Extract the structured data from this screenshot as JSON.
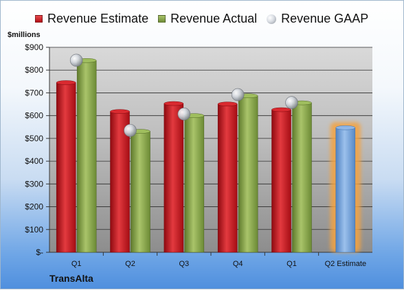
{
  "colors": {
    "estimate": "#c8161d",
    "actual": "#8aa84a",
    "gaap": "#b8bcc4",
    "q2_estimate_bar": "#6e9fd6",
    "highlight_glow": "#f4a340"
  },
  "legend": {
    "estimate_label": "Revenue Estimate",
    "actual_label": "Revenue Actual",
    "gaap_label": "Revenue GAAP"
  },
  "y_unit": "$millions",
  "company": "TransAlta",
  "chart_data": {
    "type": "bar",
    "categories": [
      "Q1",
      "Q2",
      "Q3",
      "Q4",
      "Q1",
      "Q2 Estimate"
    ],
    "series": [
      {
        "name": "Revenue Estimate",
        "values": [
          745,
          618,
          653,
          651,
          626,
          null
        ]
      },
      {
        "name": "Revenue Actual",
        "values": [
          842,
          531,
          600,
          687,
          656,
          547
        ]
      },
      {
        "name": "Revenue GAAP",
        "type": "scatter",
        "values": [
          843,
          535,
          607,
          692,
          657,
          null
        ]
      }
    ],
    "highlighted_category": "Q2 Estimate",
    "ylim": [
      0,
      900
    ],
    "y_ticks": [
      0,
      100,
      200,
      300,
      400,
      500,
      600,
      700,
      800,
      900
    ],
    "y_tick_labels": [
      "$-",
      "$100",
      "$200",
      "$300",
      "$400",
      "$500",
      "$600",
      "$700",
      "$800",
      "$900"
    ],
    "grid": true
  }
}
